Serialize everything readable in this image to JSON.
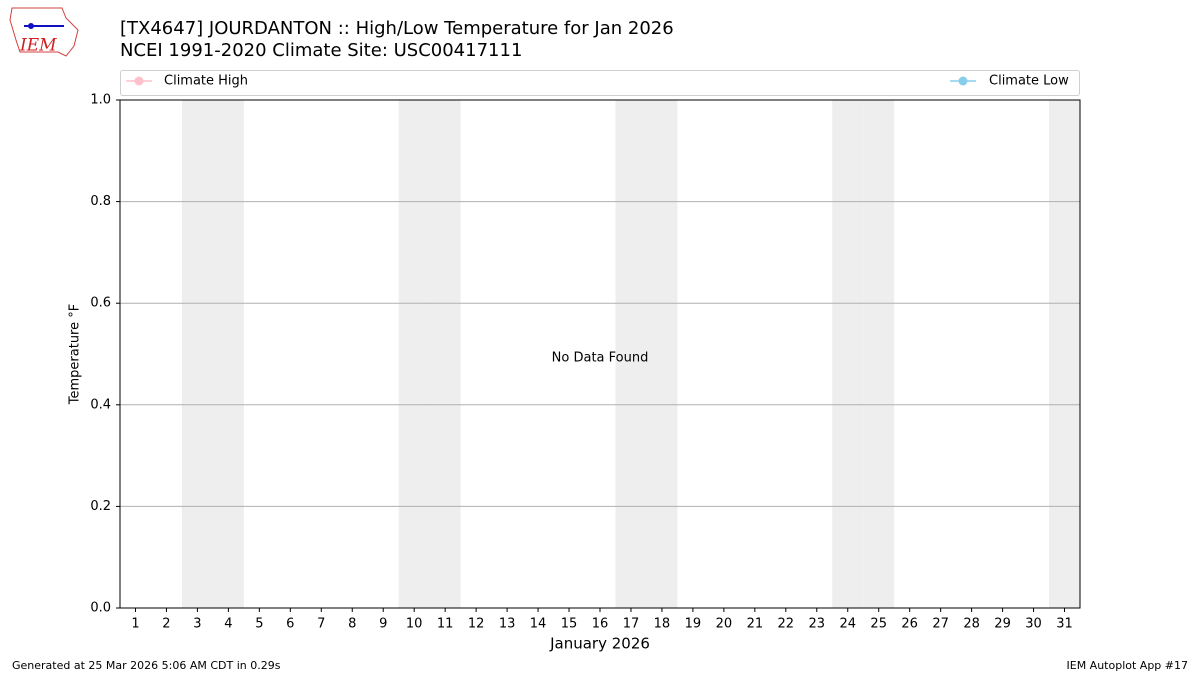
{
  "chart_data": {
    "type": "line",
    "title": "[TX4647] JOURDANTON :: High/Low Temperature for Jan 2026",
    "subtitle": "NCEI 1991-2020 Climate Site: USC00417111",
    "logo_text": "IEM",
    "xlabel": "January 2026",
    "ylabel": "Temperature °F",
    "annotation": "No Data Found",
    "footer_left": "Generated at 25 Mar 2026 5:06 AM CDT in 0.29s",
    "footer_right": "IEM Autoplot App #17",
    "x": [
      1,
      2,
      3,
      4,
      5,
      6,
      7,
      8,
      9,
      10,
      11,
      12,
      13,
      14,
      15,
      16,
      17,
      18,
      19,
      20,
      21,
      22,
      23,
      24,
      25,
      26,
      27,
      28,
      29,
      30,
      31
    ],
    "series": [
      {
        "name": "Climate High",
        "color": "#ffc0cb",
        "values": [
          null,
          null,
          null,
          null,
          null,
          null,
          null,
          null,
          null,
          null,
          null,
          null,
          null,
          null,
          null,
          null,
          null,
          null,
          null,
          null,
          null,
          null,
          null,
          null,
          null,
          null,
          null,
          null,
          null,
          null,
          null
        ]
      },
      {
        "name": "Climate Low",
        "color": "#87ceeb",
        "values": [
          null,
          null,
          null,
          null,
          null,
          null,
          null,
          null,
          null,
          null,
          null,
          null,
          null,
          null,
          null,
          null,
          null,
          null,
          null,
          null,
          null,
          null,
          null,
          null,
          null,
          null,
          null,
          null,
          null,
          null,
          null
        ]
      }
    ],
    "xlim": [
      0.5,
      31.5
    ],
    "xticks": [
      1,
      2,
      3,
      4,
      5,
      6,
      7,
      8,
      9,
      10,
      11,
      12,
      13,
      14,
      15,
      16,
      17,
      18,
      19,
      20,
      21,
      22,
      23,
      24,
      25,
      26,
      27,
      28,
      29,
      30,
      31
    ],
    "ylim": [
      0,
      1
    ],
    "yticks": [
      {
        "value": 0,
        "label": "0.0"
      },
      0.2,
      0.4,
      0.6,
      0.8,
      {
        "value": 1,
        "label": "1.0"
      }
    ],
    "grid": "y",
    "grid_color": "#b0b0b0",
    "weekend_shading": {
      "color": "#eeeeee",
      "days": [
        3,
        4,
        10,
        11,
        17,
        18,
        24,
        25,
        31
      ]
    }
  }
}
